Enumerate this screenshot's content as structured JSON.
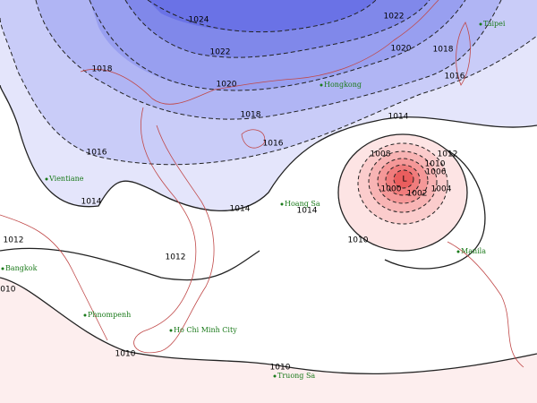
{
  "isobar_labels": [
    1024,
    1022,
    1022,
    1020,
    1020,
    1018,
    1016,
    1018,
    1018,
    1016,
    1016,
    1014,
    1014,
    1014,
    1014,
    1012,
    1012,
    1012,
    1010,
    1008,
    1006,
    1004,
    1002,
    1000,
    1010,
    1010,
    1010,
    1010
  ],
  "low_label": "L",
  "places": [
    "Taipei",
    "Hongkong",
    "Vientiane",
    "Hoang Sa",
    "Bangkok",
    "Phnompenh",
    "Ho Chi Minh City",
    "Manila",
    "Truong Sa"
  ]
}
